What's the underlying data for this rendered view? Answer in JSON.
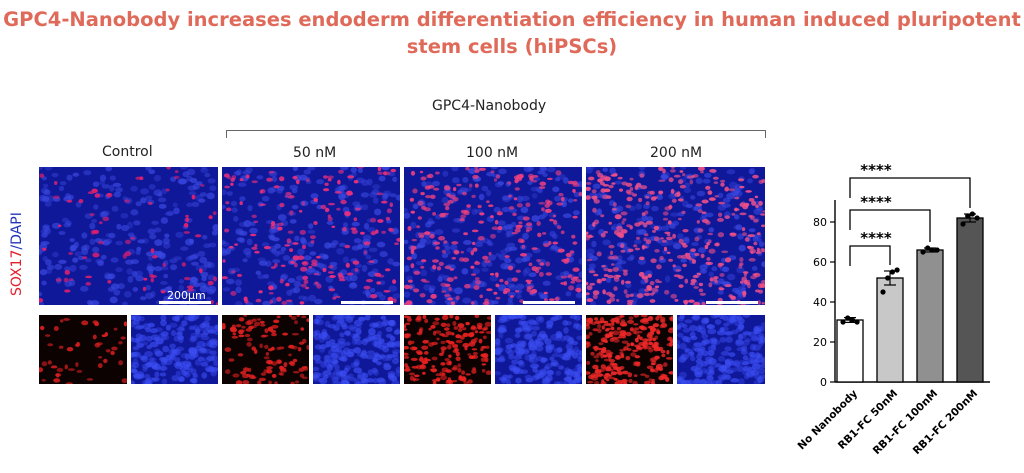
{
  "title": {
    "line1": "GPC4-Nanobody increases endoderm differentiation efficiency in human induced pluripotent",
    "line2": "stem cells (hiPSCs)"
  },
  "panel_labels": {
    "group": "GPC4-Nanobody",
    "control": "Control",
    "c50": "50 nM",
    "c100": "100 nM",
    "c200": "200 nM"
  },
  "stain_label": {
    "sox": "SOX17",
    "slash": "/",
    "dapi": "DAPI"
  },
  "scale_bar_text": "200μm",
  "colors": {
    "title": "#e06a5a",
    "sox17": "#e0202a",
    "dapi": "#2035b8"
  },
  "chart_data": {
    "type": "bar",
    "categories": [
      "No Nanobody",
      "RB1-FC 50nM",
      "RB1-FC 100nM",
      "RB1-FC 200nM"
    ],
    "values": [
      31,
      52,
      66,
      82
    ],
    "errors": [
      1.2,
      3.5,
      1.0,
      2.0
    ],
    "points": [
      [
        30,
        32,
        31,
        30
      ],
      [
        45,
        52,
        55,
        56
      ],
      [
        65,
        67,
        66,
        66
      ],
      [
        79,
        83,
        84,
        82
      ]
    ],
    "bar_colors": [
      "#ffffff",
      "#c8c8c8",
      "#909090",
      "#555555"
    ],
    "ylim": [
      0,
      90
    ],
    "yticks": [
      0,
      20,
      40,
      60,
      80
    ],
    "significance": [
      {
        "from": 0,
        "to": 1,
        "label": "****"
      },
      {
        "from": 0,
        "to": 2,
        "label": "****"
      },
      {
        "from": 0,
        "to": 3,
        "label": "****"
      }
    ],
    "xlabel": "",
    "ylabel": ""
  }
}
